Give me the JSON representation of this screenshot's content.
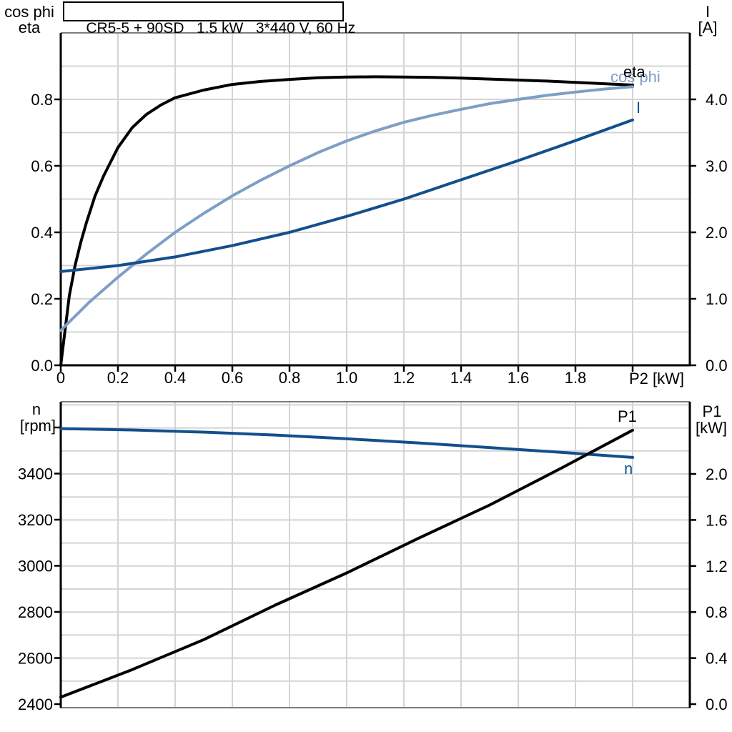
{
  "title": "CR5-5 + 90SD   1.5 kW   3*440 V, 60 Hz",
  "colors": {
    "black": "#000000",
    "dark_blue": "#134f8c",
    "light_blue": "#7e9fc5",
    "grid": "#d4d4d4",
    "frame": "#7d7d7d",
    "background": "#ffffff"
  },
  "chart_data": [
    {
      "name": "power-factor-efficiency-current",
      "type": "line",
      "title": "CR5-5 + 90SD   1.5 kW   3*440 V, 60 Hz",
      "xlabel": "P2 [kW]",
      "xlim": [
        0,
        2.2
      ],
      "grid": true,
      "x_ticks": [
        {
          "v": 0,
          "t": "0"
        },
        {
          "v": 0.2,
          "t": "0.2"
        },
        {
          "v": 0.4,
          "t": "0.4"
        },
        {
          "v": 0.6,
          "t": "0.6"
        },
        {
          "v": 0.8,
          "t": "0.8"
        },
        {
          "v": 1.0,
          "t": "1.0"
        },
        {
          "v": 1.2,
          "t": "1.2"
        },
        {
          "v": 1.4,
          "t": "1.4"
        },
        {
          "v": 1.6,
          "t": "1.6"
        },
        {
          "v": 1.8,
          "t": "1.8"
        },
        {
          "v": 2.0,
          "t": ""
        }
      ],
      "left_axis": {
        "title_lines": [
          "cos phi",
          "eta"
        ],
        "lim": [
          0,
          1.0
        ],
        "ticks": [
          {
            "v": 0.0,
            "t": "0.0"
          },
          {
            "v": 0.2,
            "t": "0.2"
          },
          {
            "v": 0.4,
            "t": "0.4"
          },
          {
            "v": 0.6,
            "t": "0.6"
          },
          {
            "v": 0.8,
            "t": "0.8"
          }
        ]
      },
      "right_axis": {
        "title_lines": [
          "I",
          "[A]"
        ],
        "lim": [
          0,
          5.0
        ],
        "ticks": [
          {
            "v": 0.0,
            "t": "0.0"
          },
          {
            "v": 1.0,
            "t": "1.0"
          },
          {
            "v": 2.0,
            "t": "2.0"
          },
          {
            "v": 3.0,
            "t": "3.0"
          },
          {
            "v": 4.0,
            "t": "4.0"
          }
        ]
      },
      "series": [
        {
          "name": "eta",
          "label": "eta",
          "axis": "left",
          "color_key": "black",
          "points": [
            [
              0,
              0
            ],
            [
              0.01,
              0.07
            ],
            [
              0.02,
              0.14
            ],
            [
              0.03,
              0.21
            ],
            [
              0.05,
              0.3
            ],
            [
              0.07,
              0.37
            ],
            [
              0.09,
              0.43
            ],
            [
              0.12,
              0.51
            ],
            [
              0.15,
              0.57
            ],
            [
              0.2,
              0.655
            ],
            [
              0.25,
              0.715
            ],
            [
              0.3,
              0.755
            ],
            [
              0.35,
              0.783
            ],
            [
              0.4,
              0.805
            ],
            [
              0.5,
              0.828
            ],
            [
              0.6,
              0.845
            ],
            [
              0.7,
              0.854
            ],
            [
              0.8,
              0.86
            ],
            [
              0.9,
              0.865
            ],
            [
              1.0,
              0.867
            ],
            [
              1.1,
              0.868
            ],
            [
              1.2,
              0.867
            ],
            [
              1.3,
              0.866
            ],
            [
              1.4,
              0.864
            ],
            [
              1.5,
              0.861
            ],
            [
              1.6,
              0.858
            ],
            [
              1.7,
              0.855
            ],
            [
              1.8,
              0.851
            ],
            [
              1.9,
              0.847
            ],
            [
              2.0,
              0.843
            ]
          ]
        },
        {
          "name": "cos-phi",
          "label": "cos phi",
          "axis": "left",
          "color_key": "light_blue",
          "points": [
            [
              0,
              0.105
            ],
            [
              0.1,
              0.19
            ],
            [
              0.2,
              0.265
            ],
            [
              0.3,
              0.335
            ],
            [
              0.4,
              0.4
            ],
            [
              0.5,
              0.457
            ],
            [
              0.6,
              0.51
            ],
            [
              0.7,
              0.557
            ],
            [
              0.8,
              0.6
            ],
            [
              0.9,
              0.64
            ],
            [
              1.0,
              0.675
            ],
            [
              1.1,
              0.705
            ],
            [
              1.2,
              0.731
            ],
            [
              1.3,
              0.752
            ],
            [
              1.4,
              0.77
            ],
            [
              1.5,
              0.787
            ],
            [
              1.6,
              0.8
            ],
            [
              1.7,
              0.812
            ],
            [
              1.8,
              0.822
            ],
            [
              1.9,
              0.831
            ],
            [
              2.0,
              0.838
            ]
          ]
        },
        {
          "name": "current",
          "label": "I",
          "axis": "right",
          "color_key": "dark_blue",
          "points": [
            [
              0,
              1.41
            ],
            [
              0.2,
              1.5
            ],
            [
              0.4,
              1.63
            ],
            [
              0.6,
              1.8
            ],
            [
              0.8,
              2.0
            ],
            [
              1.0,
              2.24
            ],
            [
              1.2,
              2.5
            ],
            [
              1.4,
              2.79
            ],
            [
              1.6,
              3.08
            ],
            [
              1.8,
              3.38
            ],
            [
              2.0,
              3.69
            ]
          ]
        }
      ]
    },
    {
      "name": "speed-input-power",
      "type": "line",
      "title": "",
      "xlabel": "",
      "xlim": [
        0,
        2.2
      ],
      "grid": true,
      "x_ticks": [],
      "left_axis": {
        "title_lines": [
          "n",
          "[rpm]"
        ],
        "lim": [
          2385,
          3710
        ],
        "ticks": [
          {
            "v": 2400,
            "t": "2400"
          },
          {
            "v": 2600,
            "t": "2600"
          },
          {
            "v": 2800,
            "t": "2800"
          },
          {
            "v": 3000,
            "t": "3000"
          },
          {
            "v": 3200,
            "t": "3200"
          },
          {
            "v": 3400,
            "t": "3400"
          },
          {
            "v": 3600,
            "t": ""
          }
        ]
      },
      "right_axis": {
        "title_lines": [
          "P1",
          "[kW]"
        ],
        "lim": [
          0,
          2.63
        ],
        "ticks": [
          {
            "v": 0.0,
            "t": "0.0"
          },
          {
            "v": 0.4,
            "t": "0.4"
          },
          {
            "v": 0.8,
            "t": "0.8"
          },
          {
            "v": 1.2,
            "t": "1.2"
          },
          {
            "v": 1.6,
            "t": "1.6"
          },
          {
            "v": 2.0,
            "t": "2.0"
          }
        ]
      },
      "series": [
        {
          "name": "speed",
          "label": "n",
          "axis": "left",
          "color_key": "dark_blue",
          "points": [
            [
              0,
              3595
            ],
            [
              0.25,
              3589
            ],
            [
              0.5,
              3580
            ],
            [
              0.75,
              3567
            ],
            [
              1.0,
              3551
            ],
            [
              1.25,
              3533
            ],
            [
              1.5,
              3513
            ],
            [
              1.75,
              3492
            ],
            [
              2.0,
              3470
            ]
          ]
        },
        {
          "name": "input-power",
          "label": "P1",
          "axis": "right",
          "color_key": "black",
          "points": [
            [
              0,
              0.06
            ],
            [
              0.25,
              0.3
            ],
            [
              0.5,
              0.56
            ],
            [
              0.75,
              0.86
            ],
            [
              1.0,
              1.14
            ],
            [
              1.25,
              1.44
            ],
            [
              1.5,
              1.73
            ],
            [
              1.75,
              2.05
            ],
            [
              2.0,
              2.38
            ]
          ]
        }
      ]
    }
  ]
}
